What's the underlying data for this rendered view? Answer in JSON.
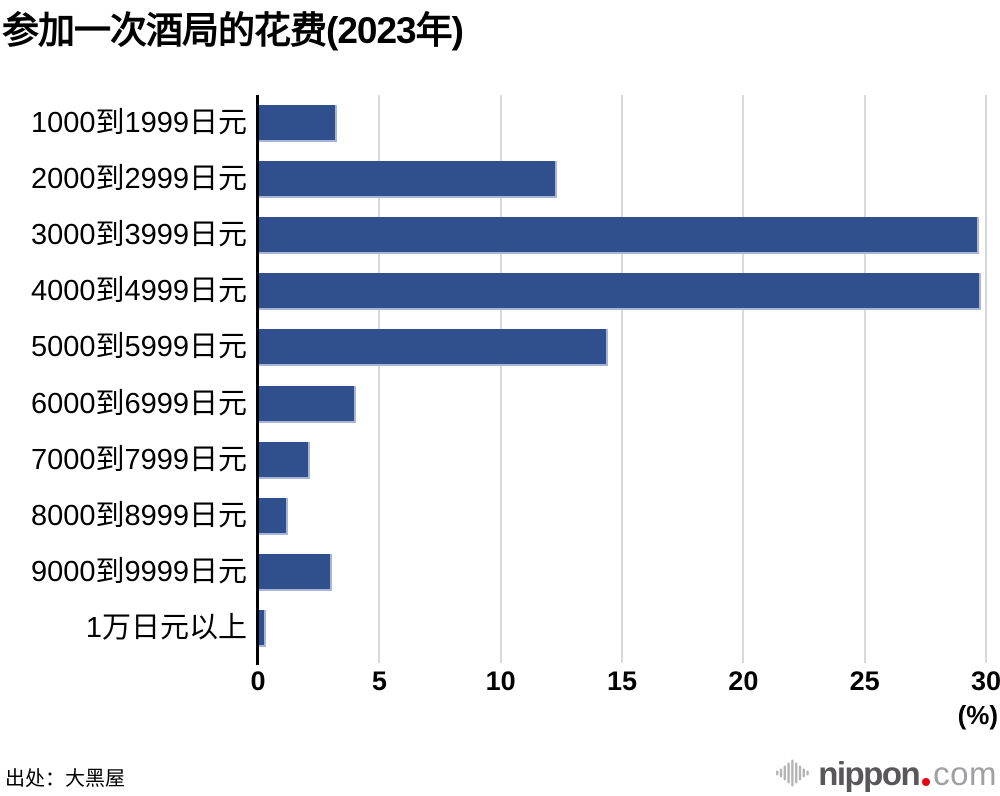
{
  "title": "参加一次酒局的花费(2023年)",
  "source": "出处：大黑屋",
  "logo": {
    "icon": "waveform-icon",
    "text_main": "nippon",
    "dot_color": "#E60012",
    "text_tld": "com",
    "text_main_color": "#595759",
    "text_tld_color": "#9FA0A2",
    "icon_color": "#B4B4B5"
  },
  "chart_data": {
    "type": "bar",
    "orientation": "horizontal",
    "title": "参加一次酒局的花费(2023年)",
    "categories": [
      "1000到1999日元",
      "2000到2999日元",
      "3000到3999日元",
      "4000到4999日元",
      "5000到5999日元",
      "6000到6999日元",
      "7000到7999日元",
      "8000到8999日元",
      "9000到9999日元",
      "1万日元以上"
    ],
    "values": [
      3.2,
      12.3,
      29.7,
      29.8,
      14.4,
      4.0,
      2.1,
      1.2,
      3.0,
      0.3
    ],
    "x_ticks": [
      0,
      5,
      10,
      15,
      20,
      25,
      30
    ],
    "x_unit_label": "(%)",
    "xlim": [
      0,
      30
    ],
    "grid": true,
    "legend": false,
    "bar_color": "#2F508D",
    "bar_edge_color": "#A9B5D6",
    "gridline_color": "#D9D9D9",
    "axis_color": "#000000"
  }
}
